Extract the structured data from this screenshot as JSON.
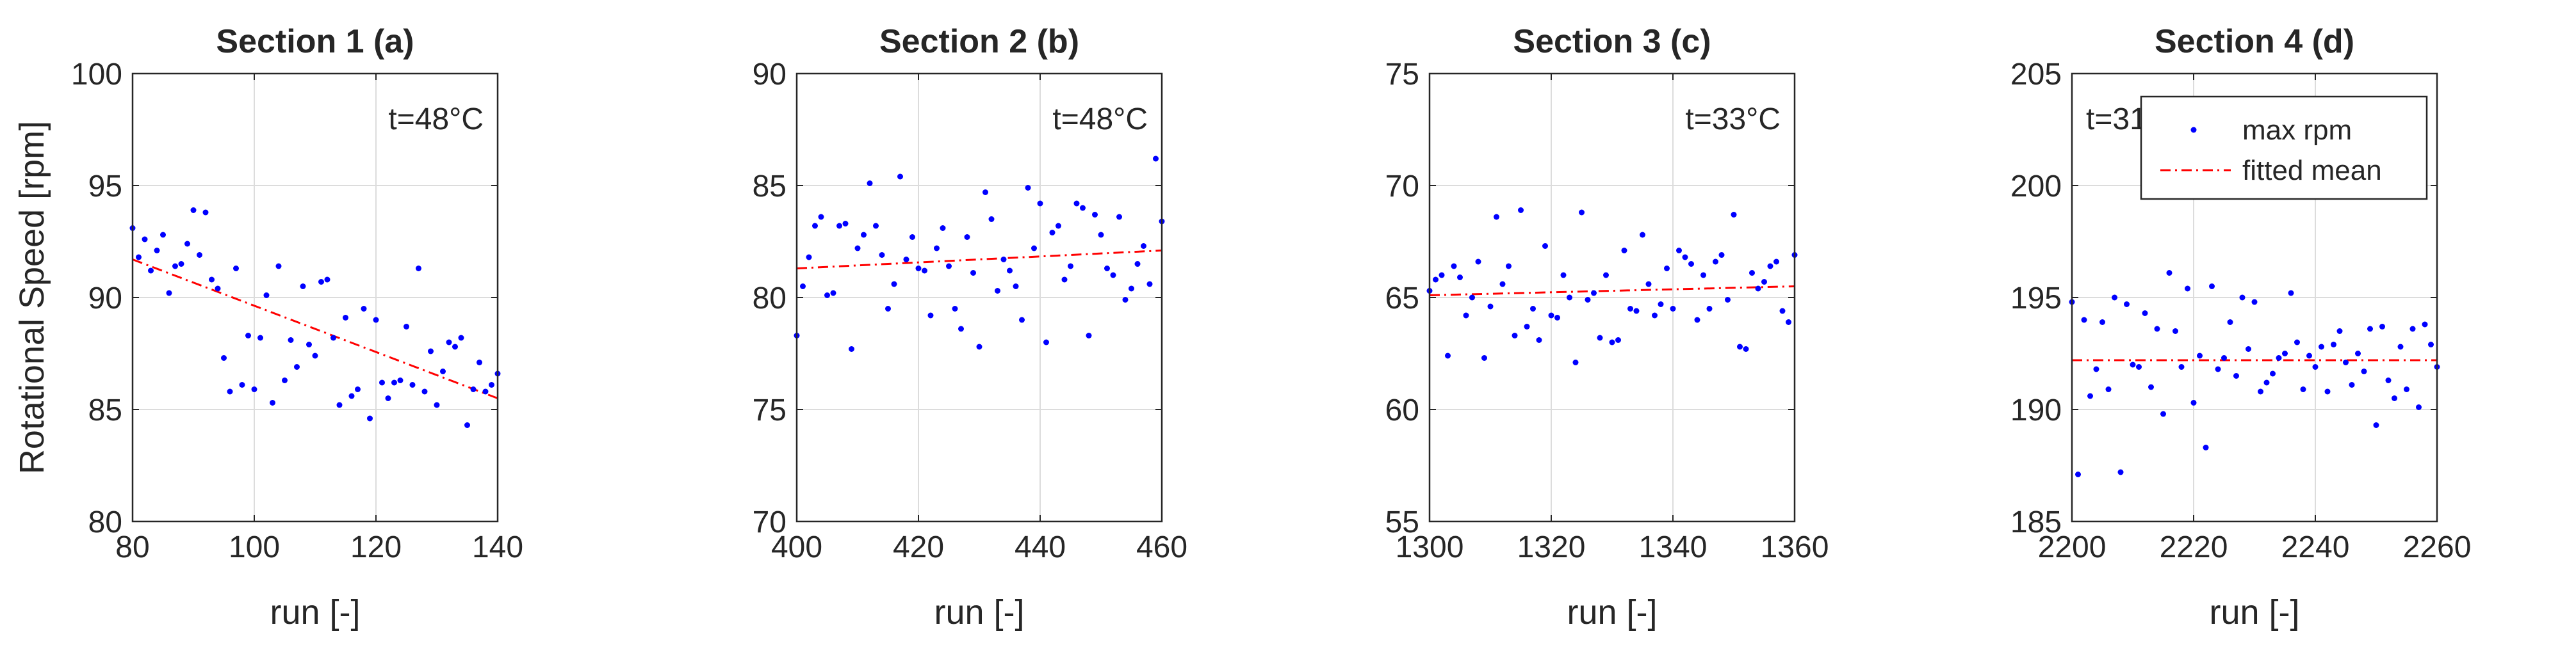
{
  "chart_data": [
    {
      "type": "scatter",
      "title": "Section 1 (a)",
      "xlabel": "run [-]",
      "ylabel": "Rotational Speed [rpm]",
      "xlim": [
        80,
        140
      ],
      "ylim": [
        80,
        100
      ],
      "xticks": [
        80,
        100,
        120,
        140
      ],
      "yticks": [
        80,
        85,
        90,
        95,
        100
      ],
      "grid": true,
      "annotation": "t=48°C",
      "series": [
        {
          "name": "max rpm",
          "x": [
            80,
            81,
            82,
            83,
            84,
            85,
            86,
            87,
            88,
            89,
            90,
            91,
            92,
            93,
            94,
            95,
            96,
            97,
            98,
            99,
            100,
            101,
            102,
            103,
            104,
            105,
            106,
            107,
            108,
            109,
            110,
            111,
            112,
            113,
            114,
            115,
            116,
            117,
            118,
            119,
            120,
            121,
            122,
            123,
            124,
            125,
            126,
            127,
            128,
            129,
            130,
            131,
            132,
            133,
            134,
            135,
            136,
            137,
            138,
            139,
            140
          ],
          "y": [
            93.1,
            91.8,
            92.6,
            91.2,
            92.1,
            92.8,
            90.2,
            91.4,
            91.5,
            92.4,
            93.9,
            91.9,
            93.8,
            90.8,
            90.4,
            87.3,
            85.8,
            91.3,
            86.1,
            88.3,
            85.9,
            88.2,
            90.1,
            85.3,
            91.4,
            86.3,
            88.1,
            86.9,
            90.5,
            87.9,
            87.4,
            90.7,
            90.8,
            88.2,
            85.2,
            89.1,
            85.6,
            85.9,
            89.5,
            84.6,
            89.0,
            86.2,
            85.5,
            86.2,
            86.3,
            88.7,
            86.1,
            91.3,
            85.8,
            87.6,
            85.2,
            86.7,
            88.0,
            87.8,
            88.2,
            84.3,
            85.9,
            87.1,
            85.8,
            86.1,
            86.6
          ]
        },
        {
          "name": "fitted mean",
          "x": [
            80,
            140
          ],
          "y": [
            91.7,
            85.5
          ]
        }
      ]
    },
    {
      "type": "scatter",
      "title": "Section 2 (b)",
      "xlabel": "run [-]",
      "ylabel": "",
      "xlim": [
        400,
        460
      ],
      "ylim": [
        70,
        90
      ],
      "xticks": [
        400,
        420,
        440,
        460
      ],
      "yticks": [
        70,
        75,
        80,
        85,
        90
      ],
      "grid": true,
      "annotation": "t=48°C",
      "series": [
        {
          "name": "max rpm",
          "x": [
            400,
            401,
            402,
            403,
            404,
            405,
            406,
            407,
            408,
            409,
            410,
            411,
            412,
            413,
            414,
            415,
            416,
            417,
            418,
            419,
            420,
            421,
            422,
            423,
            424,
            425,
            426,
            427,
            428,
            429,
            430,
            431,
            432,
            433,
            434,
            435,
            436,
            437,
            438,
            439,
            440,
            441,
            442,
            443,
            444,
            445,
            446,
            447,
            448,
            449,
            450,
            451,
            452,
            453,
            454,
            455,
            456,
            457,
            458,
            459,
            460
          ],
          "y": [
            78.3,
            80.5,
            81.8,
            83.2,
            83.6,
            80.1,
            80.2,
            83.2,
            83.3,
            77.7,
            82.2,
            82.8,
            85.1,
            83.2,
            81.9,
            79.5,
            80.6,
            85.4,
            81.7,
            82.7,
            81.3,
            81.2,
            79.2,
            82.2,
            83.1,
            81.4,
            79.5,
            78.6,
            82.7,
            81.1,
            77.8,
            84.7,
            83.5,
            80.3,
            81.7,
            81.2,
            80.5,
            79.0,
            84.9,
            82.2,
            84.2,
            78.0,
            82.9,
            83.2,
            80.8,
            81.4,
            84.2,
            84.0,
            78.3,
            83.7,
            82.8,
            81.3,
            81.0,
            83.6,
            79.9,
            80.4,
            81.5,
            82.3,
            80.6,
            86.2,
            83.4
          ]
        },
        {
          "name": "fitted mean",
          "x": [
            400,
            460
          ],
          "y": [
            81.3,
            82.1
          ]
        }
      ]
    },
    {
      "type": "scatter",
      "title": "Section 3 (c)",
      "xlabel": "run [-]",
      "ylabel": "",
      "xlim": [
        1300,
        1360
      ],
      "ylim": [
        55,
        75
      ],
      "xticks": [
        1300,
        1320,
        1340,
        1360
      ],
      "yticks": [
        55,
        60,
        65,
        70,
        75
      ],
      "grid": true,
      "annotation": "t=33°C",
      "series": [
        {
          "name": "max rpm",
          "x": [
            1300,
            1301,
            1302,
            1303,
            1304,
            1305,
            1306,
            1307,
            1308,
            1309,
            1310,
            1311,
            1312,
            1313,
            1314,
            1315,
            1316,
            1317,
            1318,
            1319,
            1320,
            1321,
            1322,
            1323,
            1324,
            1325,
            1326,
            1327,
            1328,
            1329,
            1330,
            1331,
            1332,
            1333,
            1334,
            1335,
            1336,
            1337,
            1338,
            1339,
            1340,
            1341,
            1342,
            1343,
            1344,
            1345,
            1346,
            1347,
            1348,
            1349,
            1350,
            1351,
            1352,
            1353,
            1354,
            1355,
            1356,
            1357,
            1358,
            1359,
            1360
          ],
          "y": [
            65.3,
            65.8,
            66.0,
            62.4,
            66.4,
            65.9,
            64.2,
            65.0,
            66.6,
            62.3,
            64.6,
            68.6,
            65.6,
            66.4,
            63.3,
            68.9,
            63.7,
            64.5,
            63.1,
            67.3,
            64.2,
            64.1,
            66.0,
            65.0,
            62.1,
            68.8,
            64.9,
            65.2,
            63.2,
            66.0,
            63.0,
            63.1,
            67.1,
            64.5,
            64.4,
            67.8,
            65.6,
            64.2,
            64.7,
            66.3,
            64.5,
            67.1,
            66.8,
            66.5,
            64.0,
            66.0,
            64.5,
            66.6,
            66.9,
            64.9,
            68.7,
            62.8,
            62.7,
            66.1,
            65.4,
            65.7,
            66.4,
            66.6,
            64.4,
            63.9,
            66.9
          ]
        },
        {
          "name": "fitted mean",
          "x": [
            1300,
            1360
          ],
          "y": [
            65.1,
            65.5
          ]
        }
      ]
    },
    {
      "type": "scatter",
      "title": "Section 4 (d)",
      "xlabel": "run [-]",
      "ylabel": "",
      "xlim": [
        2200,
        2260
      ],
      "ylim": [
        185,
        205
      ],
      "xticks": [
        2200,
        2220,
        2240,
        2260
      ],
      "yticks": [
        185,
        190,
        195,
        200,
        205
      ],
      "grid": true,
      "annotation": "t=31°C",
      "legend_position": "top-right",
      "series": [
        {
          "name": "max rpm",
          "x": [
            2200,
            2201,
            2202,
            2203,
            2204,
            2205,
            2206,
            2207,
            2208,
            2209,
            2210,
            2211,
            2212,
            2213,
            2214,
            2215,
            2216,
            2217,
            2218,
            2219,
            2220,
            2221,
            2222,
            2223,
            2224,
            2225,
            2226,
            2227,
            2228,
            2229,
            2230,
            2231,
            2232,
            2233,
            2234,
            2235,
            2236,
            2237,
            2238,
            2239,
            2240,
            2241,
            2242,
            2243,
            2244,
            2245,
            2246,
            2247,
            2248,
            2249,
            2250,
            2251,
            2252,
            2253,
            2254,
            2255,
            2256,
            2257,
            2258,
            2259,
            2260
          ],
          "y": [
            194.8,
            187.1,
            194.0,
            190.6,
            191.8,
            193.9,
            190.9,
            195.0,
            187.2,
            194.7,
            192.0,
            191.9,
            194.3,
            191.0,
            193.6,
            189.8,
            196.1,
            193.5,
            191.9,
            195.4,
            190.3,
            192.4,
            188.3,
            195.5,
            191.8,
            192.3,
            193.9,
            191.5,
            195.0,
            192.7,
            194.8,
            190.8,
            191.2,
            191.6,
            192.3,
            192.5,
            195.2,
            193.0,
            190.9,
            192.4,
            191.9,
            192.8,
            190.8,
            192.9,
            193.5,
            192.1,
            191.1,
            192.5,
            191.7,
            193.6,
            189.3,
            193.7,
            191.3,
            190.5,
            192.8,
            190.9,
            193.6,
            190.1,
            193.8,
            192.9,
            191.9
          ]
        },
        {
          "name": "fitted mean",
          "x": [
            2200,
            2260
          ],
          "y": [
            192.2,
            192.2
          ]
        }
      ]
    }
  ]
}
